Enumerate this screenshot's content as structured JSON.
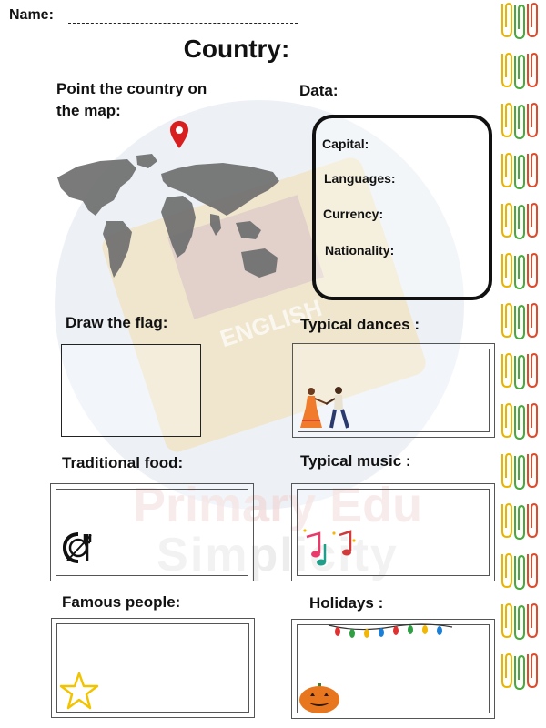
{
  "header": {
    "name_label": "Name:",
    "title": "Country:"
  },
  "map_section": {
    "label_line1": "Point the country on",
    "label_line2": "the map:",
    "pin_icon": "map-pin-icon"
  },
  "data_section": {
    "label": "Data:",
    "fields": [
      "Capital:",
      "Languages:",
      "Currency:",
      "Nationality:"
    ]
  },
  "boxes": {
    "flag": "Draw the flag:",
    "dances": "Typical dances :",
    "food": "Traditional food:",
    "music": "Typical music :",
    "people": "Famous people:",
    "holidays": "Holidays :"
  },
  "watermark": {
    "brand_line1": "Primary Edu",
    "brand_line2": "Simplicity",
    "book_text": "ENGLISH"
  },
  "colors": {
    "pin": "#d81e1e",
    "clips": [
      "#e8b400",
      "#4aa83b",
      "#e04a2a",
      "#2a9fd6"
    ]
  }
}
